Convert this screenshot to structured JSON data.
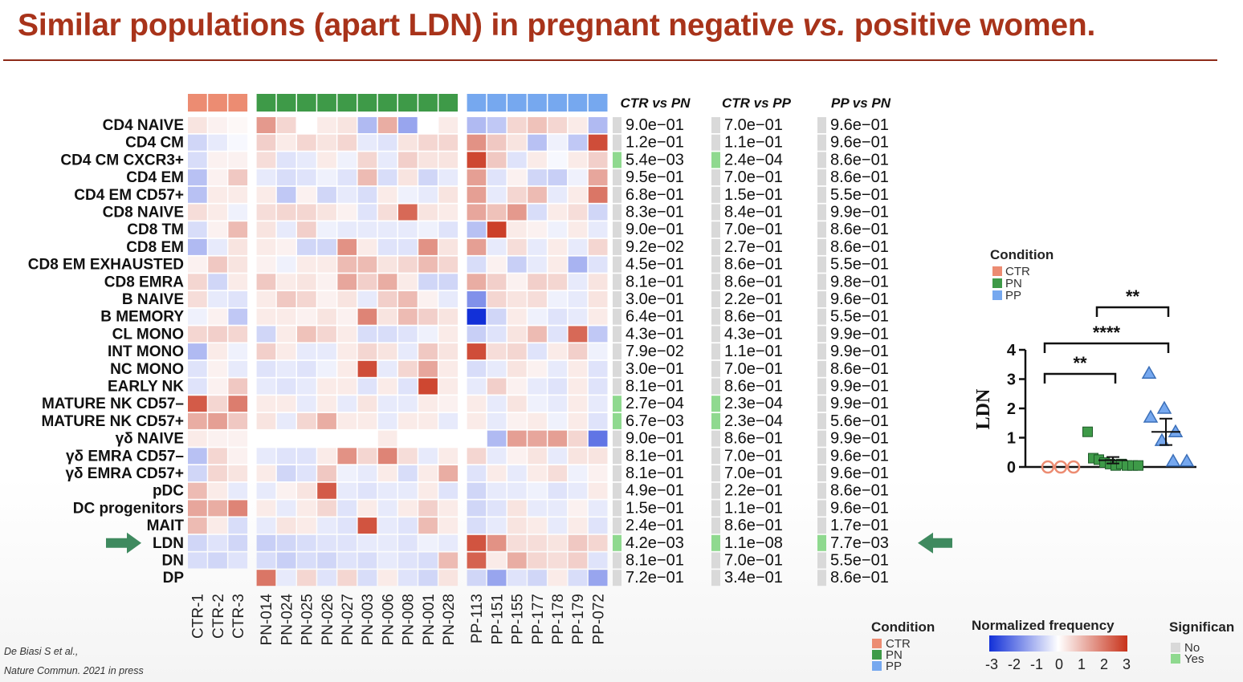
{
  "title": "Similar populations (apart LDN) in pregnant negative vs. positive women.",
  "title_parts": {
    "before": "Similar populations (apart LDN) in pregnant negative ",
    "italic": "vs.",
    "after": " positive women."
  },
  "citation": {
    "line1": "De Biasi S et al.,",
    "line2": "Nature Commun. 2021 in press"
  },
  "colors": {
    "title": "#a8331a",
    "CTR": "#ec8c72",
    "PN": "#3e9a48",
    "PP": "#76a8ef",
    "heat_low": "#1230d8",
    "heat_mid": "#ffffff",
    "heat_high": "#c8321a",
    "sig_no": "#d9d9d9",
    "sig_yes": "#8fd98f",
    "arrow": "#3f8a5f"
  },
  "chart_data": [
    {
      "type": "heatmap",
      "title": "",
      "rows": [
        "CD4 NAIVE",
        "CD4 CM",
        "CD4 CM CXCR3+",
        "CD4 EM",
        "CD4 EM CD57+",
        "CD8 NAIVE",
        "CD8 TM",
        "CD8 EM",
        "CD8 EM EXHAUSTED",
        "CD8 EMRA",
        "B NAIVE",
        "B MEMORY",
        "CL MONO",
        "INT MONO",
        "NC MONO",
        "EARLY NK",
        "MATURE NK CD57–",
        "MATURE NK CD57+",
        "γδ NAIVE",
        "γδ EMRA CD57–",
        "γδ EMRA CD57+",
        "pDC",
        "DC progenitors",
        "MAIT",
        "LDN",
        "DN",
        "DP"
      ],
      "highlight_row": "LDN",
      "columns": [
        {
          "name": "CTR-1",
          "condition": "CTR"
        },
        {
          "name": "CTR-2",
          "condition": "CTR"
        },
        {
          "name": "CTR-3",
          "condition": "CTR"
        },
        {
          "name": "PN-014",
          "condition": "PN"
        },
        {
          "name": "PN-024",
          "condition": "PN"
        },
        {
          "name": "PN-025",
          "condition": "PN"
        },
        {
          "name": "PN-026",
          "condition": "PN"
        },
        {
          "name": "PN-027",
          "condition": "PN"
        },
        {
          "name": "PN-003",
          "condition": "PN"
        },
        {
          "name": "PN-006",
          "condition": "PN"
        },
        {
          "name": "PN-008",
          "condition": "PN"
        },
        {
          "name": "PN-001",
          "condition": "PN"
        },
        {
          "name": "PN-028",
          "condition": "PN"
        },
        {
          "name": "PP-113",
          "condition": "PP"
        },
        {
          "name": "PP-151",
          "condition": "PP"
        },
        {
          "name": "PP-155",
          "condition": "PP"
        },
        {
          "name": "PP-177",
          "condition": "PP"
        },
        {
          "name": "PP-178",
          "condition": "PP"
        },
        {
          "name": "PP-179",
          "condition": "PP"
        },
        {
          "name": "PP-072",
          "condition": "PP"
        }
      ],
      "values": [
        [
          0.4,
          0.2,
          0.1,
          1.5,
          0.6,
          0.0,
          0.3,
          0.4,
          -1.0,
          1.2,
          -1.3,
          0.0,
          0.3,
          -1.0,
          -0.8,
          0.6,
          0.9,
          0.6,
          0.3,
          -1.0
        ],
        [
          -0.6,
          -0.3,
          -0.1,
          0.7,
          0.3,
          0.6,
          0.4,
          0.6,
          -0.3,
          -0.4,
          0.4,
          0.6,
          0.6,
          1.6,
          0.8,
          0.4,
          -0.9,
          -0.2,
          -0.8,
          2.6
        ],
        [
          -0.5,
          0.2,
          0.2,
          0.5,
          -0.4,
          -0.3,
          0.3,
          -0.2,
          0.6,
          -0.3,
          0.7,
          0.4,
          0.4,
          2.7,
          0.8,
          -0.4,
          0.3,
          -0.1,
          0.3,
          0.7
        ],
        [
          -0.9,
          0.2,
          0.8,
          -0.3,
          -0.5,
          -0.4,
          -0.2,
          -0.4,
          1.0,
          -0.5,
          0.4,
          -0.6,
          -0.3,
          1.4,
          -0.4,
          0.2,
          -0.6,
          -0.7,
          -0.2,
          1.3
        ],
        [
          -0.9,
          0.3,
          0.3,
          0.3,
          -0.8,
          0.2,
          -0.6,
          -0.3,
          -0.5,
          0.3,
          -0.2,
          -0.3,
          0.4,
          1.4,
          -0.3,
          0.6,
          1.0,
          -0.3,
          0.3,
          2.0
        ],
        [
          0.5,
          0.3,
          -0.2,
          0.5,
          0.6,
          0.6,
          0.4,
          0.2,
          -0.4,
          0.5,
          2.2,
          0.4,
          0.3,
          1.3,
          0.9,
          1.5,
          -0.5,
          0.3,
          0.5,
          -0.6
        ],
        [
          -0.5,
          0.2,
          1.0,
          0.4,
          -0.3,
          0.7,
          -0.2,
          -0.3,
          -0.3,
          -0.3,
          -0.3,
          -0.2,
          -0.4,
          -0.9,
          2.8,
          0.3,
          0.2,
          -0.2,
          0.3,
          -0.3
        ],
        [
          -1.0,
          -0.3,
          0.4,
          0.3,
          0.2,
          -0.6,
          -0.6,
          1.6,
          0.3,
          -0.4,
          -0.4,
          1.6,
          0.4,
          1.4,
          -0.3,
          0.5,
          -0.3,
          0.3,
          -0.3,
          0.6
        ],
        [
          0.2,
          0.8,
          0.4,
          0.2,
          -0.2,
          0.3,
          0.3,
          1.0,
          1.0,
          0.4,
          0.6,
          1.0,
          0.6,
          -0.5,
          0.2,
          -0.7,
          -0.3,
          0.3,
          -1.1,
          -0.4
        ],
        [
          0.6,
          -0.6,
          0.3,
          0.8,
          0.3,
          0.4,
          0.2,
          1.3,
          0.7,
          1.2,
          0.3,
          -0.6,
          -0.6,
          1.2,
          0.7,
          0.2,
          0.7,
          0.6,
          -0.3,
          0.4
        ],
        [
          0.5,
          -0.3,
          -0.4,
          0.3,
          0.8,
          0.6,
          0.2,
          0.4,
          -0.3,
          0.7,
          1.0,
          0.2,
          -0.3,
          -1.6,
          0.6,
          0.4,
          0.5,
          -0.2,
          -0.3,
          0.4
        ],
        [
          -0.2,
          0.2,
          -0.8,
          0.3,
          0.3,
          0.2,
          0.4,
          0.2,
          1.8,
          0.4,
          1.0,
          0.7,
          0.4,
          -3.0,
          -0.6,
          0.3,
          -0.2,
          -0.4,
          -0.3,
          0.3
        ],
        [
          0.6,
          0.7,
          0.6,
          -0.6,
          0.3,
          0.9,
          0.6,
          0.3,
          -0.5,
          -0.5,
          -0.4,
          -0.2,
          0.3,
          -0.7,
          -0.4,
          0.4,
          1.0,
          -0.4,
          2.2,
          -0.8
        ],
        [
          -1.0,
          0.3,
          -0.2,
          0.7,
          0.3,
          -0.3,
          -0.3,
          0.3,
          0.6,
          0.4,
          -0.3,
          0.8,
          0.4,
          2.6,
          0.5,
          0.6,
          -0.4,
          0.3,
          0.7,
          -0.2
        ],
        [
          -0.4,
          0.2,
          -0.3,
          -0.4,
          -0.3,
          -0.4,
          -0.2,
          0.3,
          2.6,
          -0.3,
          0.6,
          1.3,
          0.3,
          -0.5,
          -0.3,
          0.4,
          0.2,
          -0.3,
          0.3,
          -0.4
        ],
        [
          -0.4,
          0.2,
          0.8,
          -0.3,
          -0.4,
          -0.3,
          0.3,
          0.3,
          -0.4,
          0.3,
          -0.4,
          2.7,
          0.3,
          -0.3,
          0.7,
          0.2,
          -0.3,
          -0.4,
          0.3,
          -0.4
        ],
        [
          2.4,
          0.6,
          1.9,
          0.3,
          0.3,
          -0.3,
          0.3,
          -0.3,
          0.4,
          -0.3,
          -0.3,
          0.3,
          0.2,
          0.3,
          -0.3,
          0.4,
          -0.2,
          -0.3,
          0.3,
          -0.3
        ],
        [
          1.2,
          1.4,
          0.8,
          0.4,
          -0.3,
          0.6,
          1.2,
          0.3,
          0.3,
          -0.3,
          0.3,
          0.3,
          -0.3,
          0.3,
          -0.3,
          0.2,
          0.3,
          -0.2,
          0.3,
          -0.4
        ],
        [
          0.3,
          0.2,
          0.2,
          0.0,
          0.0,
          0.0,
          0.0,
          0.0,
          0.0,
          0.3,
          0.0,
          0.0,
          0.0,
          0.0,
          -1.0,
          1.4,
          1.3,
          1.4,
          0.6,
          -2.0
        ],
        [
          -0.9,
          0.6,
          0.2,
          -0.3,
          -0.4,
          -0.4,
          0.3,
          1.6,
          0.6,
          1.8,
          0.5,
          -0.3,
          0.3,
          0.6,
          -0.3,
          0.2,
          0.4,
          -0.3,
          0.4,
          0.4
        ],
        [
          -0.6,
          0.6,
          0.4,
          0.3,
          -0.6,
          -0.4,
          0.8,
          -0.2,
          -0.3,
          0.3,
          -0.5,
          0.3,
          1.2,
          -0.4,
          0.3,
          -0.3,
          0.3,
          0.5,
          -0.2,
          0.2
        ],
        [
          1.0,
          0.3,
          -0.3,
          -0.3,
          0.2,
          0.4,
          2.4,
          -0.3,
          -0.4,
          -0.3,
          -0.3,
          0.3,
          -0.4,
          -0.6,
          -0.3,
          -0.3,
          -0.2,
          -0.4,
          -0.3,
          0.3
        ],
        [
          1.3,
          1.2,
          1.8,
          0.3,
          -0.3,
          0.3,
          0.6,
          -0.4,
          0.3,
          -0.3,
          0.3,
          0.7,
          0.3,
          -0.6,
          -0.4,
          0.4,
          -0.3,
          -0.3,
          0.2,
          -0.3
        ],
        [
          1.0,
          0.3,
          -0.5,
          -0.3,
          0.4,
          0.3,
          -0.3,
          -0.4,
          2.5,
          -0.3,
          -0.4,
          1.0,
          0.3,
          -0.5,
          -0.3,
          0.4,
          0.3,
          -0.3,
          0.3,
          -0.4
        ],
        [
          -0.6,
          -0.4,
          -0.6,
          -0.7,
          -0.6,
          -0.5,
          -0.4,
          -0.4,
          -0.3,
          -0.3,
          -0.4,
          -0.2,
          -0.3,
          2.5,
          1.6,
          0.5,
          0.5,
          0.4,
          0.8,
          0.6
        ],
        [
          -0.5,
          -0.6,
          -0.4,
          -0.5,
          -0.7,
          -0.5,
          -0.6,
          -0.4,
          -0.5,
          -0.3,
          -0.4,
          -0.5,
          1.0,
          2.3,
          0.3,
          1.2,
          0.6,
          0.5,
          0.7,
          -0.4
        ],
        [
          null,
          null,
          null,
          2.0,
          -0.3,
          0.6,
          -0.4,
          0.6,
          -0.5,
          0.3,
          -0.4,
          -0.6,
          0.4,
          -0.6,
          -1.3,
          -0.4,
          -0.6,
          0.3,
          -0.5,
          -1.3
        ]
      ],
      "comparisons": [
        {
          "header": "CTR vs PN",
          "pvalues": [
            "9.0e−01",
            "1.2e−01",
            "5.4e−03",
            "9.5e−01",
            "6.8e−01",
            "8.3e−01",
            "9.0e−01",
            "9.2e−02",
            "4.5e−01",
            "8.1e−01",
            "3.0e−01",
            "6.4e−01",
            "4.3e−01",
            "7.9e−02",
            "3.0e−01",
            "8.1e−01",
            "2.7e−04",
            "6.7e−03",
            "9.0e−01",
            "8.1e−01",
            "8.1e−01",
            "4.9e−01",
            "1.5e−01",
            "2.4e−01",
            "4.2e−03",
            "8.1e−01",
            "7.2e−01"
          ],
          "significant": [
            false,
            false,
            true,
            false,
            false,
            false,
            false,
            false,
            false,
            false,
            false,
            false,
            false,
            false,
            false,
            false,
            true,
            true,
            false,
            false,
            false,
            false,
            false,
            false,
            true,
            false,
            false
          ]
        },
        {
          "header": "CTR vs PP",
          "pvalues": [
            "7.0e−01",
            "1.1e−01",
            "2.4e−04",
            "7.0e−01",
            "1.5e−01",
            "8.4e−01",
            "7.0e−01",
            "2.7e−01",
            "8.6e−01",
            "8.6e−01",
            "2.2e−01",
            "8.6e−01",
            "4.3e−01",
            "1.1e−01",
            "7.0e−01",
            "8.6e−01",
            "2.3e−04",
            "2.3e−04",
            "8.6e−01",
            "7.0e−01",
            "7.0e−01",
            "2.2e−01",
            "1.1e−01",
            "8.6e−01",
            "1.1e−08",
            "7.0e−01",
            "3.4e−01"
          ],
          "significant": [
            false,
            false,
            true,
            false,
            false,
            false,
            false,
            false,
            false,
            false,
            false,
            false,
            false,
            false,
            false,
            false,
            true,
            true,
            false,
            false,
            false,
            false,
            false,
            false,
            true,
            false,
            false
          ]
        },
        {
          "header": "PP vs PN",
          "pvalues": [
            "9.6e−01",
            "9.6e−01",
            "8.6e−01",
            "8.6e−01",
            "5.5e−01",
            "9.9e−01",
            "8.6e−01",
            "8.6e−01",
            "5.5e−01",
            "9.8e−01",
            "9.6e−01",
            "5.5e−01",
            "9.9e−01",
            "9.9e−01",
            "8.6e−01",
            "9.9e−01",
            "9.9e−01",
            "5.6e−01",
            "9.9e−01",
            "9.6e−01",
            "9.6e−01",
            "8.6e−01",
            "9.6e−01",
            "1.7e−01",
            "7.7e−03",
            "5.5e−01",
            "8.6e−01"
          ],
          "significant": [
            false,
            false,
            false,
            false,
            false,
            false,
            false,
            false,
            false,
            false,
            false,
            false,
            false,
            false,
            false,
            false,
            false,
            false,
            false,
            false,
            false,
            false,
            false,
            false,
            true,
            false,
            false
          ]
        }
      ],
      "legends": {
        "condition": {
          "title": "Condition",
          "items": [
            "CTR",
            "PN",
            "PP"
          ]
        },
        "normalized_frequency": {
          "title": "Normalized  frequency",
          "ticks": [
            "-3",
            "-2",
            "-1",
            "0",
            "1",
            "2",
            "3"
          ],
          "range": [
            -3,
            3
          ]
        },
        "significance": {
          "title": "Significan",
          "items": [
            "No",
            "Yes"
          ]
        }
      }
    },
    {
      "type": "scatter",
      "title": "",
      "ylabel": "LDN",
      "ylim": [
        0,
        4
      ],
      "yticks": [
        "0",
        "1",
        "2",
        "3",
        "4"
      ],
      "legend": {
        "title": "Condition",
        "items": [
          "CTR",
          "PN",
          "PP"
        ],
        "placement": "top-left"
      },
      "groups": [
        {
          "name": "CTR",
          "marker": "circle",
          "values": [
            0.0,
            0.0,
            0.0
          ]
        },
        {
          "name": "PN",
          "marker": "square",
          "values": [
            1.2,
            0.3,
            0.25,
            0.15,
            0.1,
            0.05,
            0.1,
            0.05,
            0.05,
            0.05
          ],
          "mean": 0.23,
          "sem": 0.11
        },
        {
          "name": "PP",
          "marker": "triangle",
          "values": [
            3.2,
            2.0,
            1.7,
            1.2,
            0.9,
            0.2,
            0.2
          ],
          "mean": 1.2,
          "sem": 0.45
        }
      ],
      "comparisons": [
        {
          "pair": [
            "CTR",
            "PN"
          ],
          "label": "**"
        },
        {
          "pair": [
            "CTR",
            "PP"
          ],
          "label": "****"
        },
        {
          "pair": [
            "PN",
            "PP"
          ],
          "label": "**"
        }
      ]
    }
  ]
}
